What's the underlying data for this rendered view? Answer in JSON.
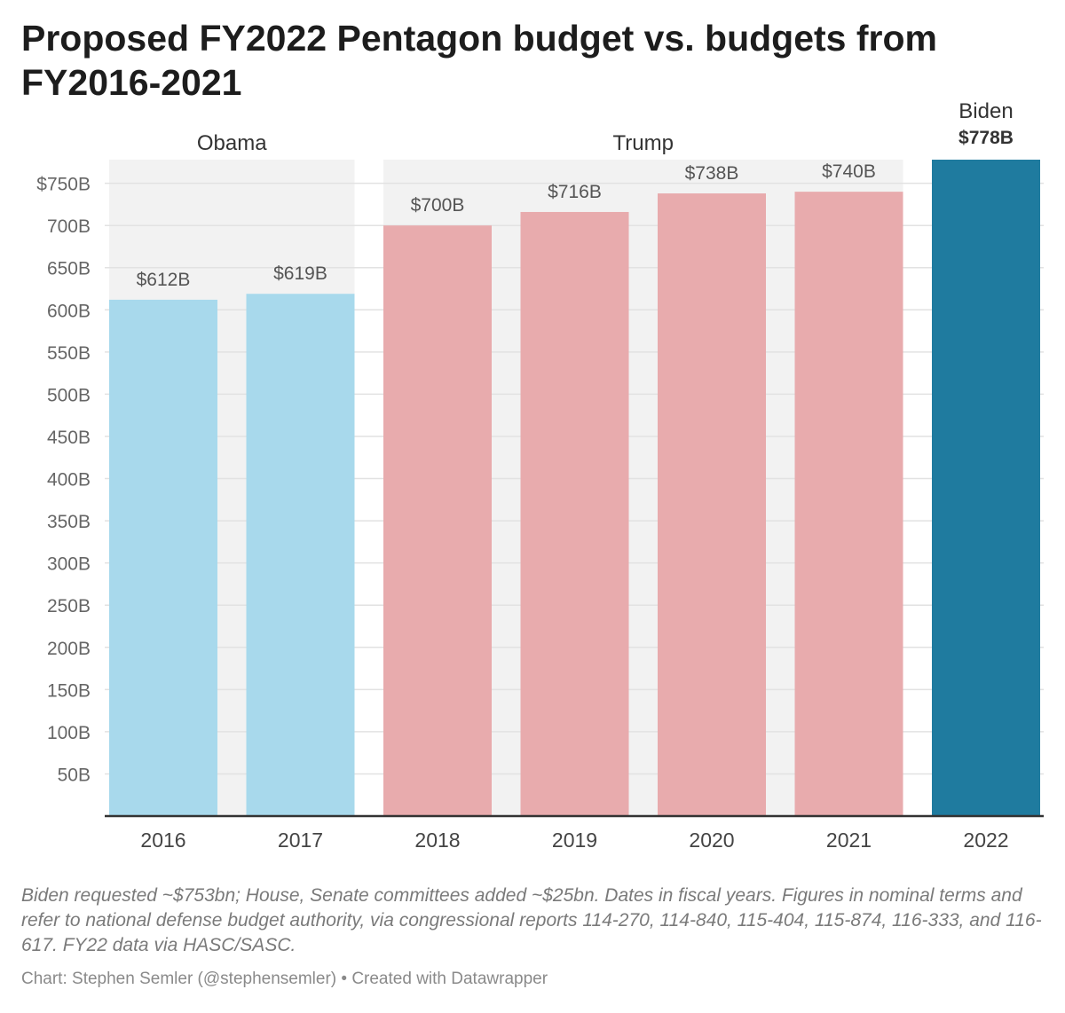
{
  "title": "Proposed FY2022 Pentagon budget vs. budgets from FY2016-2021",
  "notes": "Biden requested ~$753bn; House, Senate committees added ~$25bn. Dates in fiscal years. Figures in nominal terms and refer to national defense budget authority, via congressional reports 114-270, 114-840, 115-404, 115-874, 116-333, and 116-617. FY22 data via HASC/SASC.",
  "credit": "Chart: Stephen Semler (@stephensemler) • Created with Datawrapper",
  "colors": {
    "obama": "#a8d9ec",
    "trump": "#e8abad",
    "biden": "#1f7b9f",
    "band": "#f2f2f2",
    "grid": "#e2e2e2",
    "axis": "#333333",
    "tick_text": "#666666",
    "label_text": "#555555"
  },
  "chart_data": {
    "type": "bar",
    "categories": [
      "2016",
      "2017",
      "2018",
      "2019",
      "2020",
      "2021",
      "2022"
    ],
    "values": [
      612,
      619,
      700,
      716,
      738,
      740,
      778
    ],
    "value_labels": [
      "$612B",
      "$619B",
      "$700B",
      "$716B",
      "$738B",
      "$740B",
      "$778B"
    ],
    "ylim": [
      0,
      778
    ],
    "yticks": [
      50,
      100,
      150,
      200,
      250,
      300,
      350,
      400,
      450,
      500,
      550,
      600,
      650,
      700,
      750
    ],
    "ytick_labels": [
      "50B",
      "100B",
      "150B",
      "200B",
      "250B",
      "300B",
      "350B",
      "400B",
      "450B",
      "500B",
      "550B",
      "600B",
      "650B",
      "700B",
      "$750B"
    ],
    "grid": true,
    "xlabel": "",
    "ylabel": "",
    "groups": [
      {
        "name": "Obama",
        "categories": [
          "2016",
          "2017"
        ],
        "color_key": "obama"
      },
      {
        "name": "Trump",
        "categories": [
          "2018",
          "2019",
          "2020",
          "2021"
        ],
        "color_key": "trump"
      },
      {
        "name": "Biden",
        "categories": [
          "2022"
        ],
        "color_key": "biden"
      }
    ]
  }
}
